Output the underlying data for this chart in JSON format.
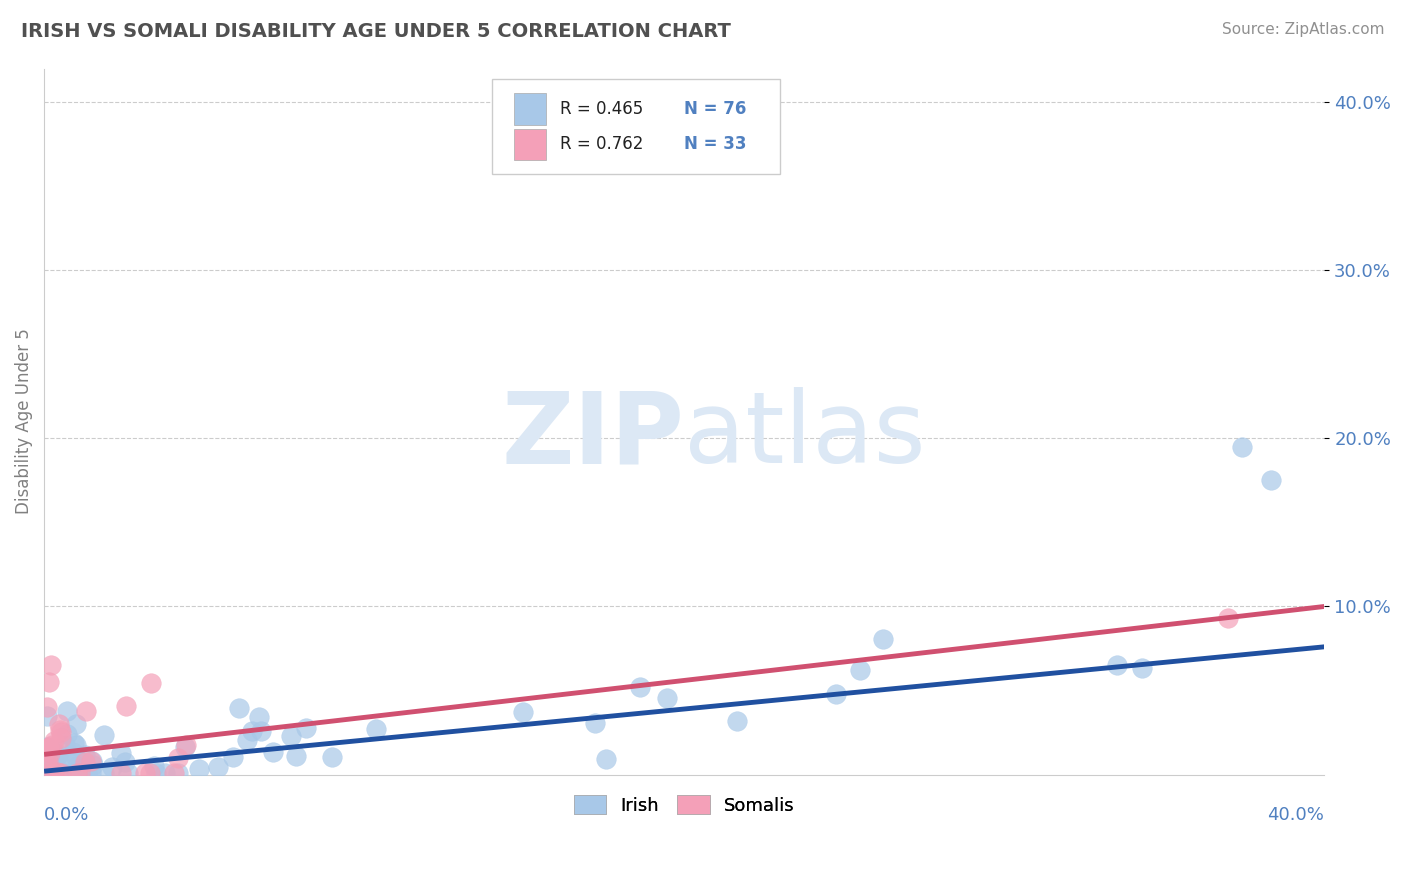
{
  "title": "IRISH VS SOMALI DISABILITY AGE UNDER 5 CORRELATION CHART",
  "source": "Source: ZipAtlas.com",
  "ylabel": "Disability Age Under 5",
  "xlim": [
    0.0,
    0.4
  ],
  "ylim": [
    0.0,
    0.42
  ],
  "ytick_vals": [
    0.1,
    0.2,
    0.3,
    0.4
  ],
  "ytick_labels": [
    "10.0%",
    "20.0%",
    "30.0%",
    "40.0%"
  ],
  "legend_r_irish": "R = 0.465",
  "legend_n_irish": "N = 76",
  "legend_r_somali": "R = 0.762",
  "legend_n_somali": "N = 33",
  "irish_color": "#a8c8e8",
  "somali_color": "#f4a0b8",
  "irish_line_color": "#2050a0",
  "somali_line_color": "#d05070",
  "background_color": "#ffffff",
  "grid_color": "#cccccc",
  "title_color": "#505050",
  "axis_label_color": "#5080c0",
  "watermark_color": "#dce8f5",
  "irish_slope": 0.185,
  "irish_intercept": 0.002,
  "somali_slope": 0.22,
  "somali_intercept": 0.012
}
